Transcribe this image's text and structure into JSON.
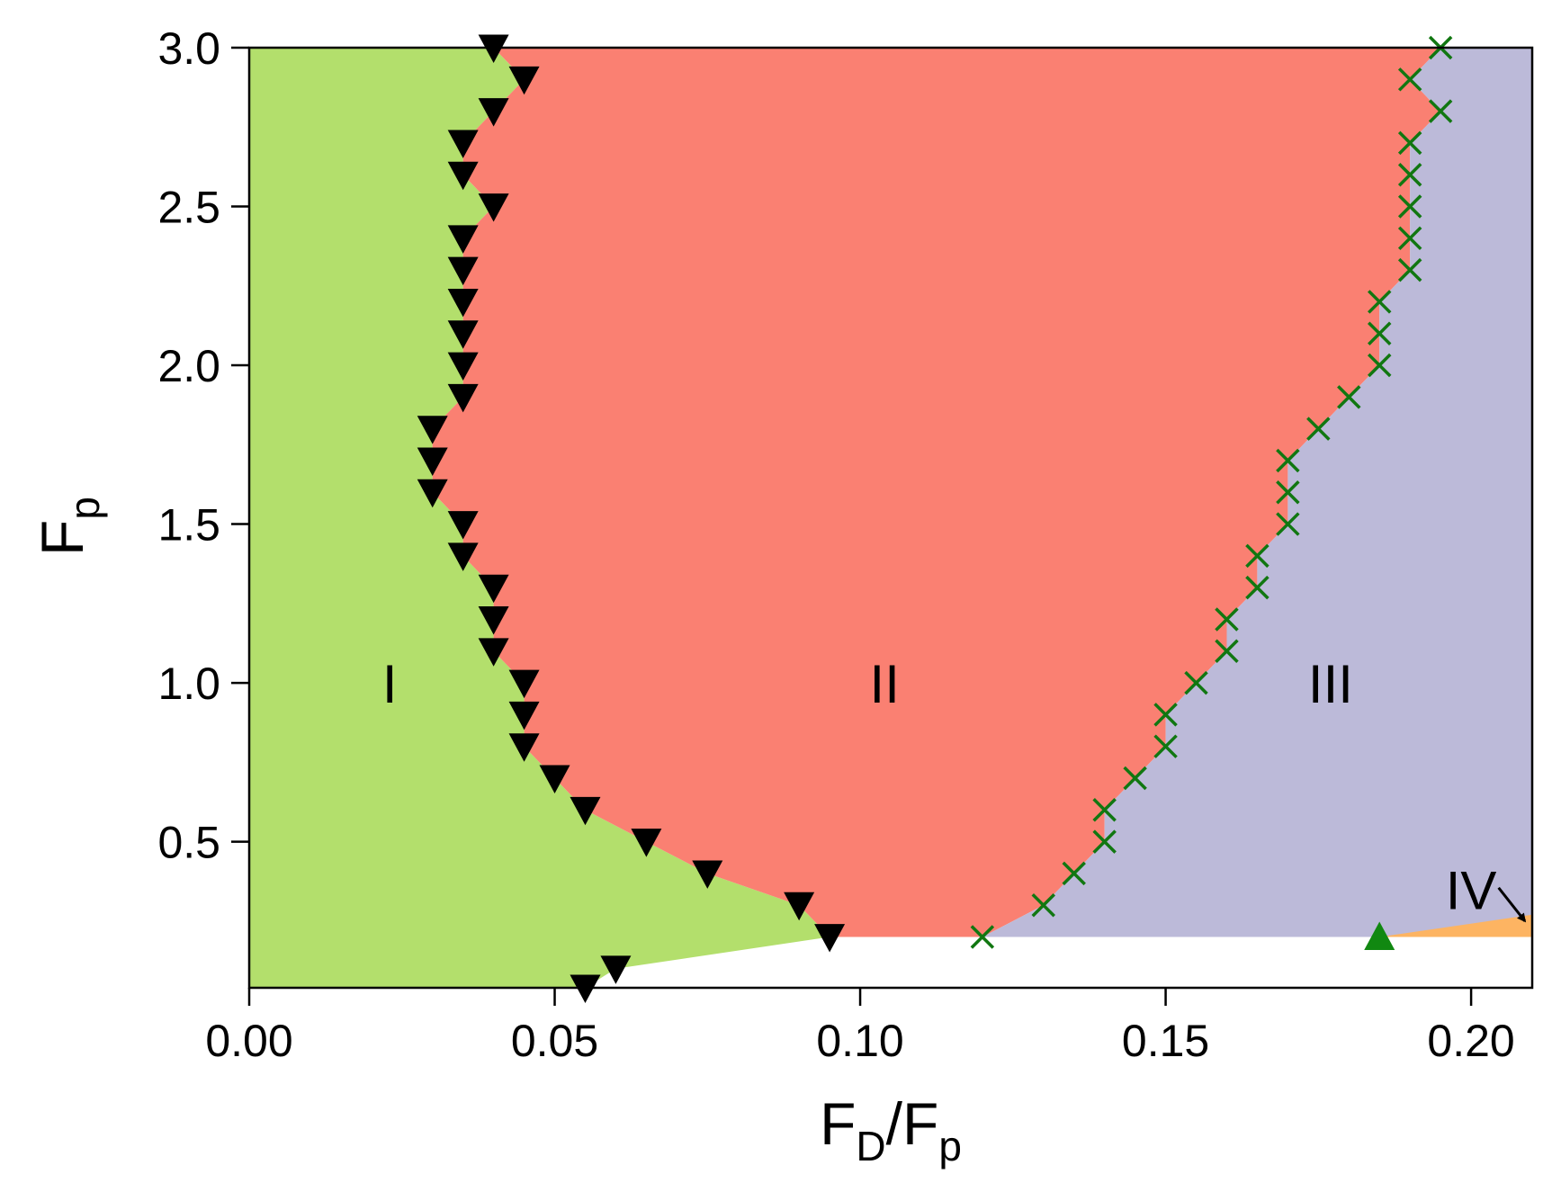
{
  "chart_data": {
    "type": "area",
    "title": "",
    "xlim": [
      0.0,
      0.21
    ],
    "ylim": [
      0.04,
      3.0
    ],
    "xticks": [
      "0.00",
      "0.05",
      "0.10",
      "0.15",
      "0.20"
    ],
    "yticks": [
      "0.5",
      "1.0",
      "1.5",
      "2.0",
      "2.5",
      "3.0"
    ],
    "xlabel": {
      "main": "F",
      "sub1": "D",
      "mid": "/F",
      "sub2": "p"
    },
    "ylabel": {
      "main": "F",
      "sub": "p"
    },
    "grid": false,
    "colors": {
      "phase_I": "#b3df6c",
      "phase_II": "#fa8072",
      "phase_III": "#bcbad9",
      "phase_IV": "#fdb462",
      "triangle_down": "#000000",
      "cross": "#117711",
      "triangle_up": "#118811"
    },
    "region_labels": [
      {
        "text": "I",
        "x": 0.023,
        "y": 1.0
      },
      {
        "text": "II",
        "x": 0.104,
        "y": 1.0
      },
      {
        "text": "III",
        "x": 0.177,
        "y": 1.0
      },
      {
        "text": "IV",
        "x": 0.2,
        "y": 0.35
      }
    ],
    "boundary_I_II": {
      "marker": "triangle-down",
      "points": [
        [
          0.055,
          0.04
        ],
        [
          0.06,
          0.1
        ],
        [
          0.095,
          0.2
        ],
        [
          0.09,
          0.3
        ],
        [
          0.075,
          0.4
        ],
        [
          0.065,
          0.5
        ],
        [
          0.055,
          0.6
        ],
        [
          0.05,
          0.7
        ],
        [
          0.045,
          0.8
        ],
        [
          0.045,
          0.9
        ],
        [
          0.045,
          1.0
        ],
        [
          0.04,
          1.1
        ],
        [
          0.04,
          1.2
        ],
        [
          0.04,
          1.3
        ],
        [
          0.035,
          1.4
        ],
        [
          0.035,
          1.5
        ],
        [
          0.03,
          1.6
        ],
        [
          0.03,
          1.7
        ],
        [
          0.03,
          1.8
        ],
        [
          0.035,
          1.9
        ],
        [
          0.035,
          2.0
        ],
        [
          0.035,
          2.1
        ],
        [
          0.035,
          2.2
        ],
        [
          0.035,
          2.3
        ],
        [
          0.035,
          2.4
        ],
        [
          0.04,
          2.5
        ],
        [
          0.035,
          2.6
        ],
        [
          0.035,
          2.7
        ],
        [
          0.04,
          2.8
        ],
        [
          0.045,
          2.9
        ],
        [
          0.04,
          3.0
        ]
      ]
    },
    "boundary_II_III": {
      "marker": "cross",
      "points": [
        [
          0.12,
          0.2
        ],
        [
          0.13,
          0.3
        ],
        [
          0.135,
          0.4
        ],
        [
          0.14,
          0.5
        ],
        [
          0.14,
          0.6
        ],
        [
          0.145,
          0.7
        ],
        [
          0.15,
          0.8
        ],
        [
          0.15,
          0.9
        ],
        [
          0.155,
          1.0
        ],
        [
          0.16,
          1.1
        ],
        [
          0.16,
          1.2
        ],
        [
          0.165,
          1.3
        ],
        [
          0.165,
          1.4
        ],
        [
          0.17,
          1.5
        ],
        [
          0.17,
          1.6
        ],
        [
          0.17,
          1.7
        ],
        [
          0.175,
          1.8
        ],
        [
          0.18,
          1.9
        ],
        [
          0.185,
          2.0
        ],
        [
          0.185,
          2.1
        ],
        [
          0.185,
          2.2
        ],
        [
          0.19,
          2.3
        ],
        [
          0.19,
          2.4
        ],
        [
          0.19,
          2.5
        ],
        [
          0.19,
          2.6
        ],
        [
          0.19,
          2.7
        ],
        [
          0.195,
          2.8
        ],
        [
          0.19,
          2.9
        ],
        [
          0.195,
          3.0
        ]
      ]
    },
    "boundary_III_IV": {
      "marker": "triangle-up",
      "points": [
        [
          0.185,
          0.2
        ]
      ]
    },
    "pinning_floor": 0.2,
    "phase_IV_top_right": [
      0.21,
      0.27
    ]
  }
}
